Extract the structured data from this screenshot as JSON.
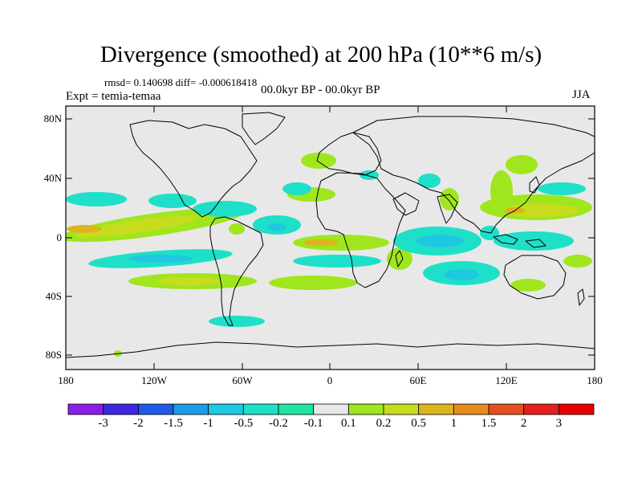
{
  "figure": {
    "title": "Divergence (smoothed) at 200 hPa (10**6 m/s)",
    "stats": "rmsd= 0.140698 diff= -0.000618418",
    "experiment": "Expt = temia-temaa",
    "period": "00.0kyr BP - 00.0kyr BP",
    "season": "JJA"
  },
  "map": {
    "projection": "cylindrical equidistant",
    "lon_range": [
      -180,
      180
    ],
    "lat_range": [
      -90,
      90
    ],
    "y_ticks": [
      "80N",
      "40N",
      "0",
      "40S",
      "80S"
    ],
    "x_ticks": [
      "180",
      "120W",
      "60W",
      "0",
      "60E",
      "120E",
      "180"
    ],
    "background_color": "#e8e8e8",
    "coastline_color": "#000000"
  },
  "colorbar": {
    "labels": [
      "-3",
      "-2",
      "-1.5",
      "-1",
      "-0.5",
      "-0.2",
      "-0.1",
      "0.1",
      "0.2",
      "0.5",
      "1",
      "1.5",
      "2",
      "3"
    ],
    "colors": [
      "#8a1ee6",
      "#3c28e0",
      "#1e5ae6",
      "#1e9be6",
      "#1ec8e0",
      "#1ee0c8",
      "#1ee6a0",
      "#e8e8e8",
      "#a0e61e",
      "#c8dc1e",
      "#dcb41e",
      "#e68c1e",
      "#e6501e",
      "#e61e1e",
      "#e60000"
    ]
  },
  "field_colors": {
    "pos_weak": "#a0e61e",
    "pos_mid": "#c8dc1e",
    "pos_strong": "#dcb41e",
    "neg_weak": "#1ee0c8",
    "neg_mid": "#1ec8e0",
    "neg_strong": "#1e9be6"
  }
}
